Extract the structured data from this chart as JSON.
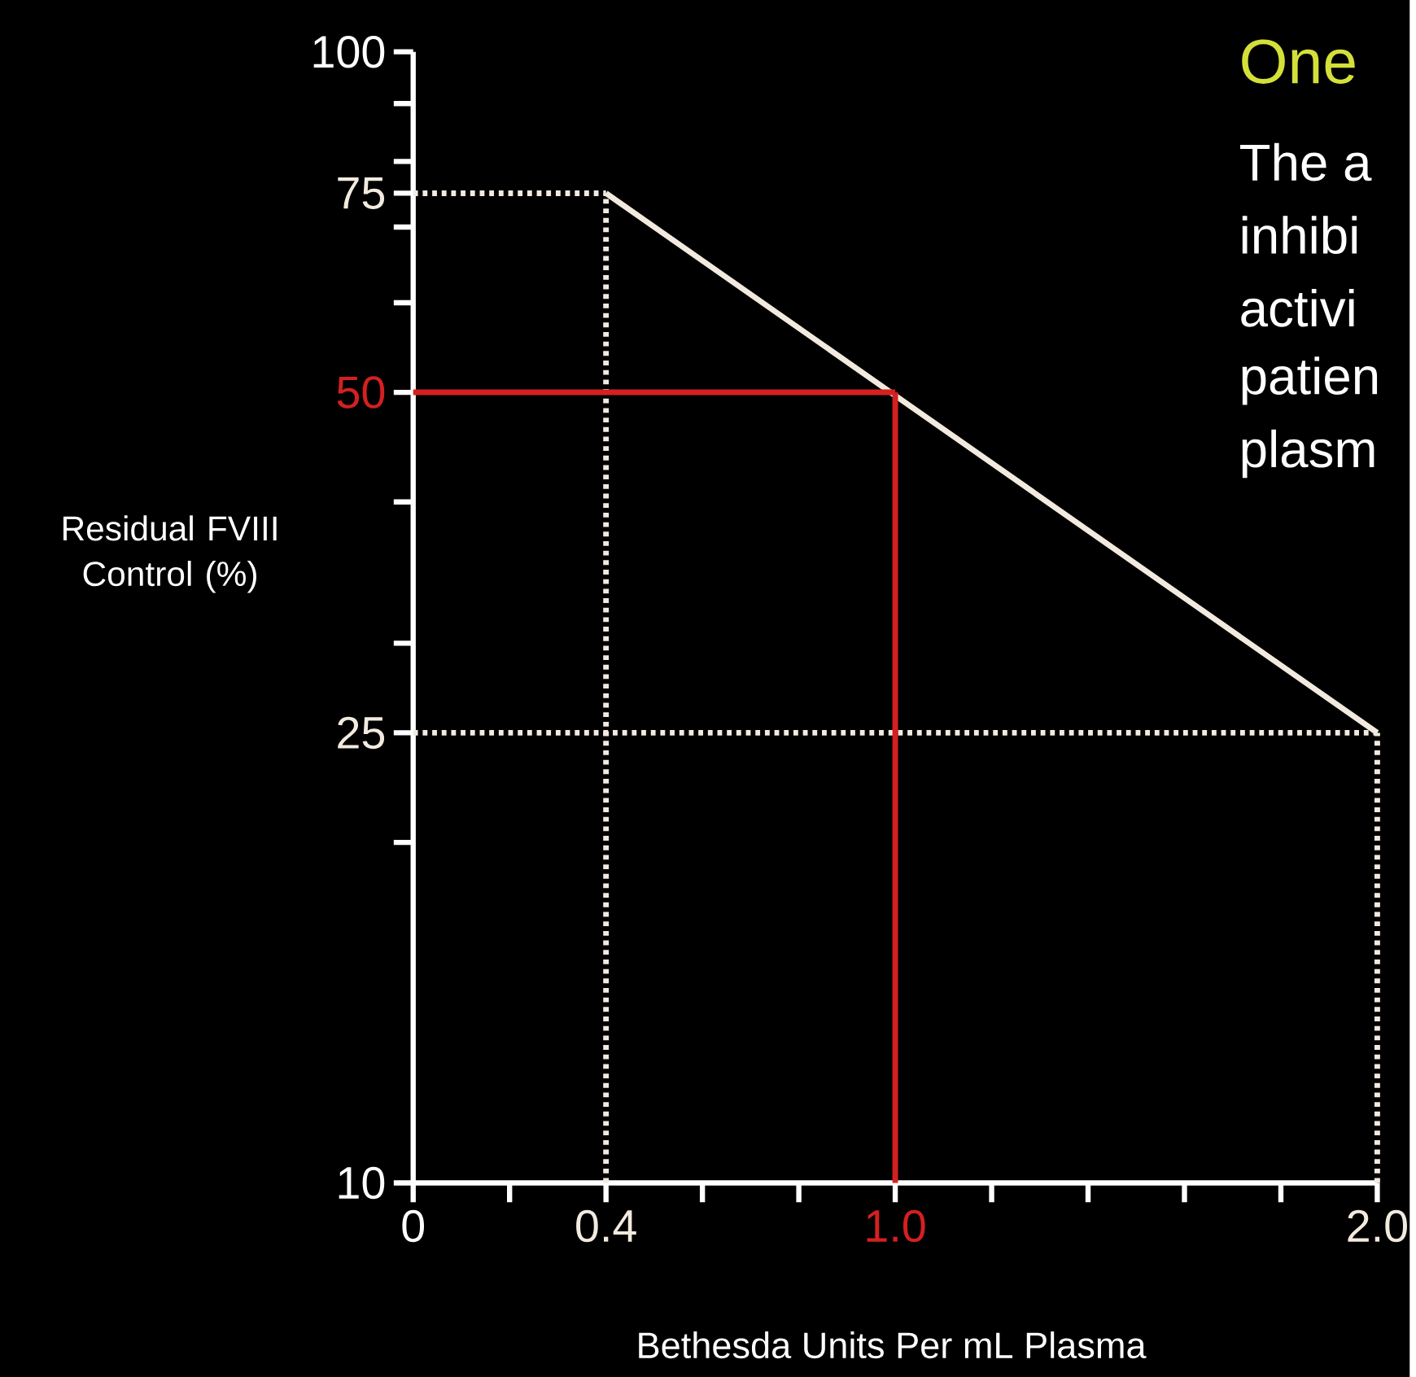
{
  "chart_data": {
    "type": "line",
    "title": "One",
    "annotations": [
      "The a",
      "inhibi",
      "activi",
      "patien",
      "plasm"
    ],
    "xlabel": "Bethesda Units Per mL Plasma",
    "ylabel": "Residual FVIII Control (%)",
    "log": "y",
    "xlim": [
      0,
      2
    ],
    "ylim": [
      10,
      100
    ],
    "xticks": [
      0,
      {
        "value": 0.2,
        "label": null
      },
      0.4,
      {
        "value": 0.6,
        "label": null
      },
      {
        "value": 0.8,
        "label": null
      },
      {
        "value": 1,
        "label": "1.0"
      },
      {
        "value": 1.2,
        "label": null
      },
      {
        "value": 1.4,
        "label": null
      },
      {
        "value": 1.6,
        "label": null
      },
      {
        "value": 1.8,
        "label": null
      },
      {
        "value": 2,
        "label": "2.0"
      }
    ],
    "yticks": [
      10,
      {
        "value": 20,
        "label": null
      },
      25,
      {
        "value": 30,
        "label": null
      },
      {
        "value": 40,
        "label": null
      },
      50,
      {
        "value": 60,
        "label": null
      },
      {
        "value": 70,
        "label": null
      },
      75,
      {
        "value": 80,
        "label": null
      },
      {
        "value": 90,
        "label": null
      },
      100
    ],
    "series": [
      {
        "color": "#f2eadf",
        "line_style": "solid",
        "x": [
          0.4,
          2
        ],
        "values": [
          75,
          25
        ]
      },
      {
        "color": "#f2eadf",
        "line_style": "dotted",
        "x": [
          0,
          0.4
        ],
        "values": [
          75,
          75
        ]
      },
      {
        "color": "#f2eadf",
        "line_style": "dotted",
        "x": [
          0.4,
          0.4
        ],
        "values": [
          10,
          75
        ]
      },
      {
        "color": "#f2eadf",
        "line_style": "dotted",
        "x": [
          0,
          2
        ],
        "values": [
          25,
          25
        ]
      },
      {
        "color": "#f2eadf",
        "line_style": "dotted",
        "x": [
          2,
          2
        ],
        "values": [
          10,
          25
        ]
      },
      {
        "color": "#d42020",
        "line_style": "solid",
        "x": [
          0,
          1
        ],
        "values": [
          50,
          50
        ]
      },
      {
        "color": "#d42020",
        "line_style": "solid",
        "x": [
          1,
          1
        ],
        "values": [
          10,
          50
        ]
      }
    ]
  }
}
